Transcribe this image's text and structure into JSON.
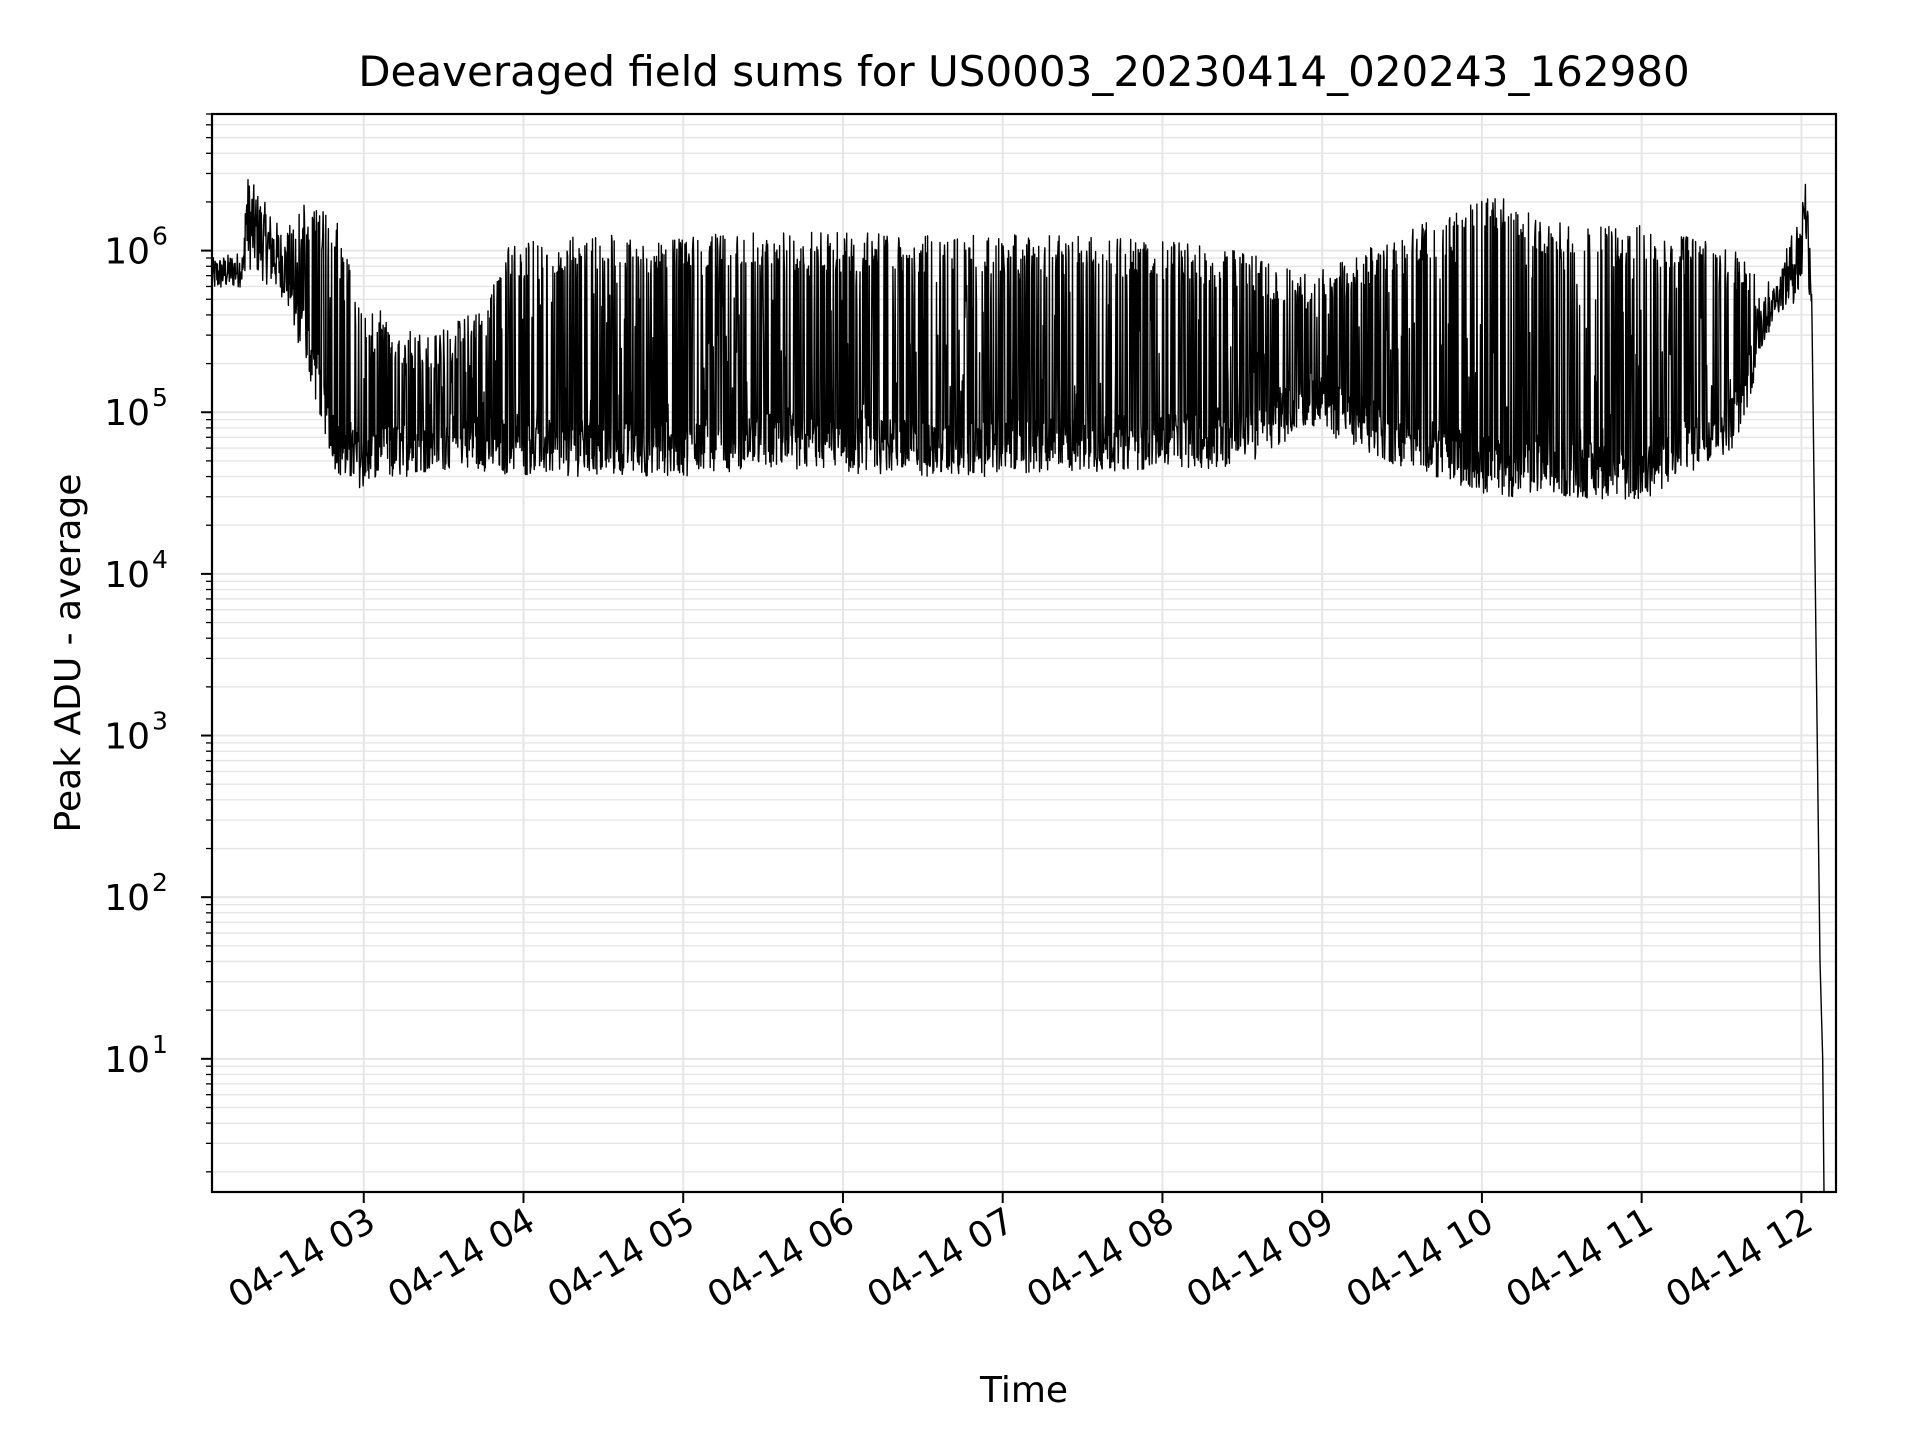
{
  "chart_data": {
    "type": "line",
    "title": "Deaveraged field sums for US0003_20230414_020243_162980",
    "xlabel": "Time",
    "ylabel": "Peak ADU - average",
    "yscale": "log",
    "ylim": [
      1.5,
      7000000
    ],
    "xlim": [
      "2023-04-14T02:03:00",
      "2023-04-14T12:13:00"
    ],
    "grid": true,
    "grid_minor": true,
    "line_color": "#000000",
    "x_ticks": [
      {
        "t": "2023-04-14T03:00:00",
        "label": "04-14 03"
      },
      {
        "t": "2023-04-14T04:00:00",
        "label": "04-14 04"
      },
      {
        "t": "2023-04-14T05:00:00",
        "label": "04-14 05"
      },
      {
        "t": "2023-04-14T06:00:00",
        "label": "04-14 06"
      },
      {
        "t": "2023-04-14T07:00:00",
        "label": "04-14 07"
      },
      {
        "t": "2023-04-14T08:00:00",
        "label": "04-14 08"
      },
      {
        "t": "2023-04-14T09:00:00",
        "label": "04-14 09"
      },
      {
        "t": "2023-04-14T10:00:00",
        "label": "04-14 10"
      },
      {
        "t": "2023-04-14T11:00:00",
        "label": "04-14 11"
      },
      {
        "t": "2023-04-14T12:00:00",
        "label": "04-14 12"
      }
    ],
    "y_ticks": [
      {
        "value": 10,
        "base": "10",
        "exp": "1"
      },
      {
        "value": 100,
        "base": "10",
        "exp": "2"
      },
      {
        "value": 1000,
        "base": "10",
        "exp": "3"
      },
      {
        "value": 10000,
        "base": "10",
        "exp": "4"
      },
      {
        "value": 100000,
        "base": "10",
        "exp": "5"
      },
      {
        "value": 1000000,
        "base": "10",
        "exp": "6"
      }
    ],
    "series": [
      {
        "envelope": [
          {
            "t": "2023-04-14T02:03:00",
            "low": 550000,
            "high": 900000
          },
          {
            "t": "2023-04-14T02:15:00",
            "low": 600000,
            "high": 1000000
          },
          {
            "t": "2023-04-14T02:15:30",
            "low": 800000,
            "high": 3100000
          },
          {
            "t": "2023-04-14T02:30:00",
            "low": 500000,
            "high": 1300000
          },
          {
            "t": "2023-04-14T02:40:00",
            "low": 150000,
            "high": 2200000
          },
          {
            "t": "2023-04-14T02:50:00",
            "low": 40000,
            "high": 1500000
          },
          {
            "t": "2023-04-14T03:00:00",
            "low": 33000,
            "high": 500000
          },
          {
            "t": "2023-04-14T03:20:00",
            "low": 42000,
            "high": 300000
          },
          {
            "t": "2023-04-14T03:40:00",
            "low": 45000,
            "high": 400000
          },
          {
            "t": "2023-04-14T03:55:00",
            "low": 40000,
            "high": 1100000
          },
          {
            "t": "2023-04-14T04:30:00",
            "low": 40000,
            "high": 1300000
          },
          {
            "t": "2023-04-14T05:00:00",
            "low": 40000,
            "high": 1200000
          },
          {
            "t": "2023-04-14T05:30:00",
            "low": 45000,
            "high": 1350000
          },
          {
            "t": "2023-04-14T06:00:00",
            "low": 42000,
            "high": 1300000
          },
          {
            "t": "2023-04-14T06:30:00",
            "low": 40000,
            "high": 1250000
          },
          {
            "t": "2023-04-14T07:00:00",
            "low": 40000,
            "high": 1250000
          },
          {
            "t": "2023-04-14T07:30:00",
            "low": 42000,
            "high": 1250000
          },
          {
            "t": "2023-04-14T08:00:00",
            "low": 45000,
            "high": 1150000
          },
          {
            "t": "2023-04-14T08:30:00",
            "low": 45000,
            "high": 1000000
          },
          {
            "t": "2023-04-14T08:55:00",
            "low": 80000,
            "high": 700000
          },
          {
            "t": "2023-04-14T09:30:00",
            "low": 45000,
            "high": 1300000
          },
          {
            "t": "2023-04-14T10:05:00",
            "low": 30000,
            "high": 2200000
          },
          {
            "t": "2023-04-14T10:30:00",
            "low": 30000,
            "high": 1500000
          },
          {
            "t": "2023-04-14T11:00:00",
            "low": 28000,
            "high": 1500000
          },
          {
            "t": "2023-04-14T11:35:00",
            "low": 60000,
            "high": 1000000
          },
          {
            "t": "2023-04-14T11:50:00",
            "low": 400000,
            "high": 600000
          },
          {
            "t": "2023-04-14T12:00:00",
            "low": 500000,
            "high": 2000000
          },
          {
            "t": "2023-04-14T12:01:00",
            "low": 1500000,
            "high": 3600000
          },
          {
            "t": "2023-04-14T12:04:00",
            "low": 300000,
            "high": 1200000
          },
          {
            "t": "2023-04-14T12:07:00",
            "low": 30,
            "high": 40
          },
          {
            "t": "2023-04-14T12:08:00",
            "low": 10,
            "high": 10
          },
          {
            "t": "2023-04-14T12:08:30",
            "low": 1.5,
            "high": 1.5
          }
        ]
      }
    ]
  }
}
